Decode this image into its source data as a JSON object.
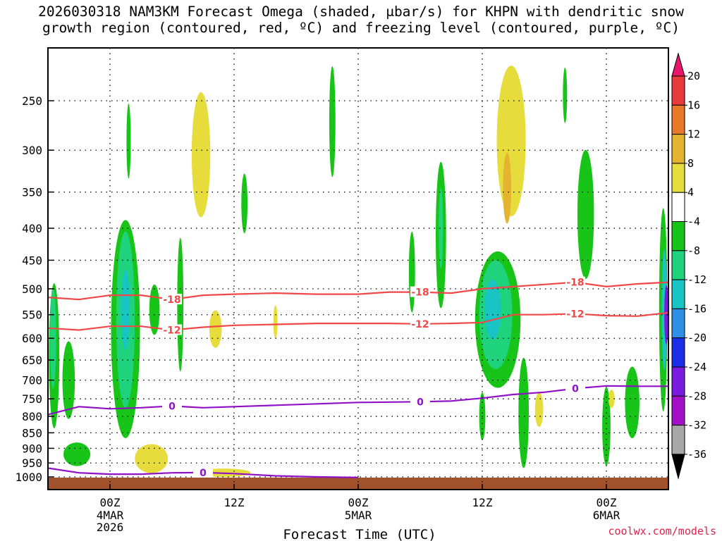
{
  "title_line1": "2026030318 NAM3KM Forecast Omega (shaded, μbar/s) for KHPN with dendritic snow",
  "title_line2": "growth region (contoured, red, ºC) and freezing level (contoured, purple, ºC)",
  "credit": "coolwx.com/models",
  "chart_data": {
    "type": "time-height contour",
    "xlabel": "Forecast Time (UTC)",
    "x_ticks": [
      {
        "label": "00Z",
        "sub": [
          "4MAR",
          "2026"
        ],
        "hour": 6
      },
      {
        "label": "12Z",
        "sub": [],
        "hour": 18
      },
      {
        "label": "00Z",
        "sub": [
          "5MAR"
        ],
        "hour": 30
      },
      {
        "label": "12Z",
        "sub": [],
        "hour": 42
      },
      {
        "label": "00Z",
        "sub": [
          "6MAR"
        ],
        "hour": 54
      }
    ],
    "x_range_hours": [
      0,
      60
    ],
    "y_ticks_hpa": [
      250,
      300,
      350,
      400,
      450,
      500,
      550,
      600,
      650,
      700,
      750,
      800,
      850,
      900,
      950,
      1000
    ],
    "colorbar": {
      "labels": [
        "20",
        "16",
        "12",
        "8",
        "4",
        "-4",
        "-8",
        "-12",
        "-16",
        "-20",
        "-24",
        "-28",
        "-32",
        "-36"
      ],
      "colors": [
        "#e8176b",
        "#e83b3b",
        "#e8792a",
        "#e4b431",
        "#e6dc3c",
        "#ffffff",
        "#18c418",
        "#1fd27c",
        "#18c4c4",
        "#2f8fe6",
        "#1c2ee8",
        "#7a1ce0",
        "#a410c8",
        "#a8a8a8",
        "#000000"
      ]
    },
    "contours": [
      {
        "name": "-18 °C",
        "color": "#f04848",
        "label": "-18",
        "points": [
          [
            0,
            516
          ],
          [
            3,
            520
          ],
          [
            6,
            512
          ],
          [
            9,
            512
          ],
          [
            12,
            520
          ],
          [
            15,
            512
          ],
          [
            18,
            510
          ],
          [
            22,
            508
          ],
          [
            26,
            510
          ],
          [
            30,
            510
          ],
          [
            33,
            506
          ],
          [
            36,
            506
          ],
          [
            39,
            508
          ],
          [
            42,
            500
          ],
          [
            45,
            496
          ],
          [
            48,
            492
          ],
          [
            51,
            488
          ],
          [
            54,
            496
          ],
          [
            57,
            491
          ],
          [
            60,
            488
          ]
        ]
      },
      {
        "name": "-12 °C",
        "color": "#f04848",
        "label": "-12",
        "points": [
          [
            0,
            578
          ],
          [
            3,
            582
          ],
          [
            6,
            574
          ],
          [
            9,
            574
          ],
          [
            12,
            582
          ],
          [
            15,
            576
          ],
          [
            18,
            572
          ],
          [
            22,
            570
          ],
          [
            26,
            568
          ],
          [
            30,
            568
          ],
          [
            33,
            568
          ],
          [
            36,
            569
          ],
          [
            39,
            568
          ],
          [
            42,
            566
          ],
          [
            45,
            550
          ],
          [
            48,
            550
          ],
          [
            51,
            548
          ],
          [
            54,
            552
          ],
          [
            57,
            553
          ],
          [
            60,
            546
          ]
        ]
      },
      {
        "name": "0 °C freezing level",
        "color": "#9010c8",
        "label": "0",
        "points": [
          [
            0,
            795
          ],
          [
            3,
            772
          ],
          [
            6,
            778
          ],
          [
            9,
            775
          ],
          [
            12,
            770
          ],
          [
            15,
            775
          ],
          [
            18,
            772
          ],
          [
            22,
            768
          ],
          [
            26,
            764
          ],
          [
            30,
            760
          ],
          [
            33,
            759
          ],
          [
            36,
            758
          ],
          [
            39,
            756
          ],
          [
            42,
            748
          ],
          [
            45,
            738
          ],
          [
            48,
            732
          ],
          [
            51,
            722
          ],
          [
            54,
            715
          ],
          [
            57,
            716
          ],
          [
            60,
            716
          ]
        ]
      },
      {
        "name": "0 °C surface",
        "color": "#9010c8",
        "label": "0",
        "points": [
          [
            0,
            968
          ],
          [
            3,
            985
          ],
          [
            6,
            990
          ],
          [
            9,
            990
          ],
          [
            12,
            985
          ],
          [
            15,
            984
          ],
          [
            18,
            988
          ],
          [
            22,
            996
          ],
          [
            26,
            1000
          ],
          [
            30,
            1002
          ]
        ]
      }
    ],
    "omega_regions": [
      {
        "value": -8,
        "center": [
          0.6,
          640
        ],
        "rx": 0.5,
        "ry": 170
      },
      {
        "value": -12,
        "center": [
          0.5,
          600
        ],
        "rx": 0.3,
        "ry": 110
      },
      {
        "value": -8,
        "center": [
          2.0,
          700
        ],
        "rx": 0.6,
        "ry": 100
      },
      {
        "value": -8,
        "center": [
          7.5,
          580
        ],
        "rx": 1.4,
        "ry": 230
      },
      {
        "value": -12,
        "center": [
          7.5,
          560
        ],
        "rx": 0.9,
        "ry": 180
      },
      {
        "value": -16,
        "center": [
          7.5,
          540
        ],
        "rx": 0.4,
        "ry": 80
      },
      {
        "value": -8,
        "center": [
          12.8,
          530
        ],
        "rx": 0.3,
        "ry": 130
      },
      {
        "value": -8,
        "center": [
          10.3,
          540
        ],
        "rx": 0.5,
        "ry": 50
      },
      {
        "value": -8,
        "center": [
          2.8,
          920
        ],
        "rx": 1.3,
        "ry": 40
      },
      {
        "value": -8,
        "center": [
          19.0,
          365
        ],
        "rx": 0.3,
        "ry": 40
      },
      {
        "value": -8,
        "center": [
          7.8,
          290
        ],
        "rx": 0.2,
        "ry": 40
      },
      {
        "value": -8,
        "center": [
          27.5,
          270
        ],
        "rx": 0.3,
        "ry": 55
      },
      {
        "value": -8,
        "center": [
          35.2,
          470
        ],
        "rx": 0.3,
        "ry": 70
      },
      {
        "value": -8,
        "center": [
          38.0,
          410
        ],
        "rx": 0.5,
        "ry": 110
      },
      {
        "value": -12,
        "center": [
          38.0,
          400
        ],
        "rx": 0.2,
        "ry": 60
      },
      {
        "value": -8,
        "center": [
          43.5,
          560
        ],
        "rx": 2.2,
        "ry": 140
      },
      {
        "value": -12,
        "center": [
          43.3,
          550
        ],
        "rx": 1.6,
        "ry": 110
      },
      {
        "value": -16,
        "center": [
          43.0,
          540
        ],
        "rx": 0.8,
        "ry": 60
      },
      {
        "value": -8,
        "center": [
          46.0,
          790
        ],
        "rx": 0.5,
        "ry": 160
      },
      {
        "value": -8,
        "center": [
          42.0,
          800
        ],
        "rx": 0.3,
        "ry": 70
      },
      {
        "value": -8,
        "center": [
          52.0,
          380
        ],
        "rx": 0.8,
        "ry": 90
      },
      {
        "value": -8,
        "center": [
          50.0,
          245
        ],
        "rx": 0.2,
        "ry": 25
      },
      {
        "value": -8,
        "center": [
          59.5,
          540
        ],
        "rx": 0.4,
        "ry": 200
      },
      {
        "value": -16,
        "center": [
          59.6,
          540
        ],
        "rx": 0.25,
        "ry": 120
      },
      {
        "value": -28,
        "center": [
          59.8,
          550
        ],
        "rx": 0.1,
        "ry": 60
      },
      {
        "value": -8,
        "center": [
          56.5,
          760
        ],
        "rx": 0.7,
        "ry": 100
      },
      {
        "value": -8,
        "center": [
          54.0,
          830
        ],
        "rx": 0.4,
        "ry": 120
      },
      {
        "value": 4,
        "center": [
          14.8,
          305
        ],
        "rx": 0.9,
        "ry": 70
      },
      {
        "value": 4,
        "center": [
          10.0,
          935
        ],
        "rx": 1.6,
        "ry": 50
      },
      {
        "value": 4,
        "center": [
          17.0,
          985
        ],
        "rx": 2.6,
        "ry": 15
      },
      {
        "value": 4,
        "center": [
          16.2,
          580
        ],
        "rx": 0.6,
        "ry": 40
      },
      {
        "value": 4,
        "center": [
          44.8,
          290
        ],
        "rx": 1.4,
        "ry": 80
      },
      {
        "value": 8,
        "center": [
          44.4,
          345
        ],
        "rx": 0.4,
        "ry": 45
      },
      {
        "value": 4,
        "center": [
          22.0,
          565
        ],
        "rx": 0.2,
        "ry": 35
      },
      {
        "value": 4,
        "center": [
          47.5,
          780
        ],
        "rx": 0.4,
        "ry": 50
      },
      {
        "value": 4,
        "center": [
          54.5,
          750
        ],
        "rx": 0.3,
        "ry": 25
      }
    ]
  }
}
